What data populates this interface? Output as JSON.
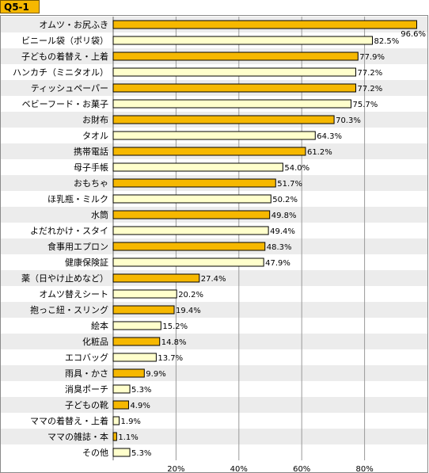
{
  "title": "Q5-1",
  "colors": {
    "highlight": "#f6b800",
    "light": "#ffffcc",
    "alt_row": "#ececec",
    "grid": "#999999"
  },
  "chart_data": {
    "type": "bar",
    "orientation": "horizontal",
    "title": "Q5-1",
    "xlim": [
      0,
      100
    ],
    "ticks": [
      "20%",
      "40%",
      "60%",
      "80%"
    ],
    "tick_values": [
      20,
      40,
      60,
      80
    ],
    "grid": true,
    "categories": [
      "オムツ・お尻ふき",
      "ビニール袋（ポリ袋）",
      "子どもの着替え・上着",
      "ハンカチ（ミニタオル）",
      "ティッシュペーパー",
      "ベビーフード・お菓子",
      "お財布",
      "タオル",
      "携帯電話",
      "母子手帳",
      "おもちゃ",
      "ほ乳瓶・ミルク",
      "水筒",
      "よだれかけ・スタイ",
      "食事用エプロン",
      "健康保険証",
      "薬（日やけ止めなど）",
      "オムツ替えシート",
      "抱っこ紐・スリング",
      "絵本",
      "化粧品",
      "エコバッグ",
      "雨具・かさ",
      "消臭ポーチ",
      "子どもの靴",
      "ママの着替え・上着",
      "ママの雑誌・本",
      "その他"
    ],
    "values": [
      96.6,
      82.5,
      77.9,
      77.2,
      77.2,
      75.7,
      70.3,
      64.3,
      61.2,
      54.0,
      51.7,
      50.2,
      49.8,
      49.4,
      48.3,
      47.9,
      27.4,
      20.2,
      19.4,
      15.2,
      14.8,
      13.7,
      9.9,
      5.3,
      4.9,
      1.9,
      1.1,
      5.3
    ],
    "value_labels": [
      "96.6%",
      "82.5%",
      "77.9%",
      "77.2%",
      "77.2%",
      "75.7%",
      "70.3%",
      "64.3%",
      "61.2%",
      "54.0%",
      "51.7%",
      "50.2%",
      "49.8%",
      "49.4%",
      "48.3%",
      "47.9%",
      "27.4%",
      "20.2%",
      "19.4%",
      "15.2%",
      "14.8%",
      "13.7%",
      "9.9%",
      "5.3%",
      "4.9%",
      "1.9%",
      "1.1%",
      "5.3%"
    ],
    "highlighted": [
      true,
      false,
      true,
      false,
      true,
      false,
      true,
      false,
      true,
      false,
      true,
      false,
      true,
      false,
      true,
      false,
      true,
      false,
      true,
      false,
      true,
      false,
      true,
      false,
      true,
      false,
      true,
      false
    ]
  }
}
